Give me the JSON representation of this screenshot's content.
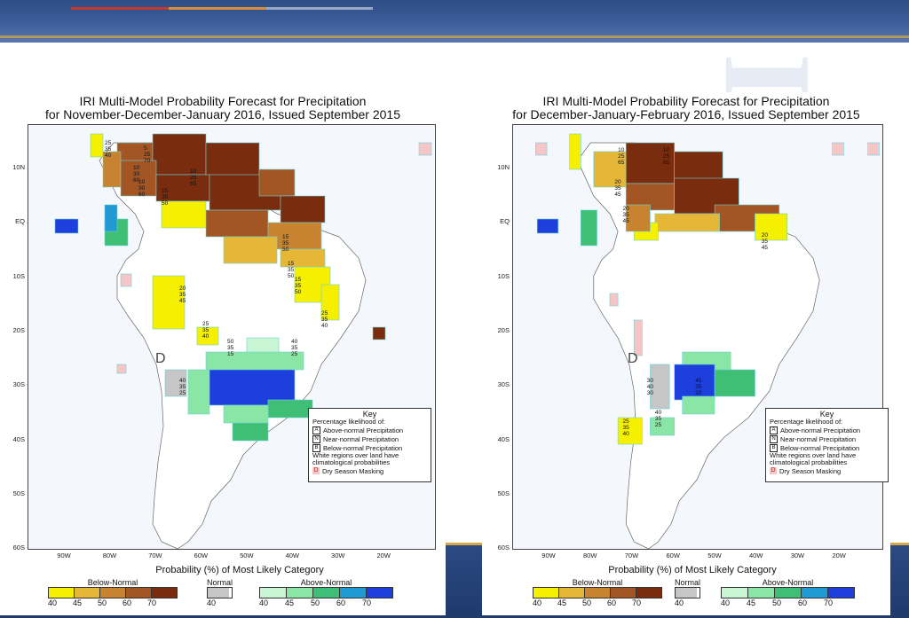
{
  "colors": {
    "below": [
      "#f4f000",
      "#e6b637",
      "#c7832f",
      "#a35524",
      "#7a2c0e"
    ],
    "normal": "#c6c6c6",
    "above": [
      "#c8f5d4",
      "#8ae6a4",
      "#3fbf76",
      "#1f9ad3",
      "#1d3fdb"
    ],
    "mask": "#f6c6c6",
    "ocean": "#f4f8fc",
    "gridcell_border": "#6fd1d6",
    "header": "#2d4d86",
    "footer": "#22417a",
    "gold": "#d3a84a"
  },
  "legend": {
    "title": "Probability (%) of Most Likely Category",
    "below_label": "Below-Normal",
    "normal_label": "Normal",
    "above_label": "Above-Normal",
    "below_ticks": [
      "40",
      "45",
      "50",
      "60",
      "70"
    ],
    "normal_ticks": [
      "40"
    ],
    "above_ticks": [
      "40",
      "45",
      "50",
      "60",
      "70"
    ]
  },
  "key": {
    "title": "Key",
    "subtitle": "Percentage likelihood of:",
    "row_a_letter": "A",
    "row_a_text": "Above-normal Precipitation",
    "row_n_letter": "N",
    "row_n_text": "Near-normal Precipitation",
    "row_b_letter": "B",
    "row_b_text": "Below-normal Precipitation",
    "note_line1": "White regions over land have",
    "note_line2": "climatological probabilities",
    "mask_letter": "D",
    "mask_text": "Dry Season Masking"
  },
  "axes": {
    "lat_labels": [
      "10N",
      "EQ",
      "10S",
      "20S",
      "30S",
      "40S",
      "50S",
      "60S"
    ],
    "lon_labels": [
      "90W",
      "80W",
      "70W",
      "60W",
      "50W",
      "40W",
      "30W",
      "20W"
    ]
  },
  "left_map": {
    "title_line1": "IRI Multi-Model Probability Forecast for Precipitation",
    "title_line2": "for November-December-January 2016, Issued September 2015",
    "dry_mask_letter": "D",
    "annotations": [
      [
        "25",
        "35",
        "40"
      ],
      [
        "5",
        "25",
        "70"
      ],
      [
        "10",
        "30",
        "60"
      ],
      [
        "10",
        "25",
        "65"
      ],
      [
        "10",
        "30",
        "60"
      ],
      [
        "15",
        "35",
        "50"
      ],
      [
        "20",
        "35",
        "45"
      ],
      [
        "15",
        "35",
        "50"
      ],
      [
        "15",
        "35",
        "50"
      ],
      [
        "15",
        "35",
        "50"
      ],
      [
        "25",
        "35",
        "40"
      ],
      [
        "25",
        "35",
        "40"
      ],
      [
        "50",
        "35",
        "15"
      ],
      [
        "40",
        "35",
        "25"
      ],
      [
        "40",
        "35",
        "25"
      ]
    ]
  },
  "right_map": {
    "title_line1": "IRI Multi-Model Probability Forecast for Precipitation",
    "title_line2": "for December-January-February 2016, Issued September 2015",
    "dry_mask_letter": "D",
    "annotations": [
      [
        "10",
        "25",
        "65"
      ],
      [
        "10",
        "25",
        "65"
      ],
      [
        "20",
        "35",
        "45"
      ],
      [
        "20",
        "35",
        "45"
      ],
      [
        "20",
        "35",
        "45"
      ],
      [
        "30",
        "40",
        "30"
      ],
      [
        "25",
        "35",
        "40"
      ],
      [
        "40",
        "35",
        "25"
      ],
      [
        "45",
        "35",
        "20"
      ]
    ]
  },
  "ghost_text": "IRI"
}
